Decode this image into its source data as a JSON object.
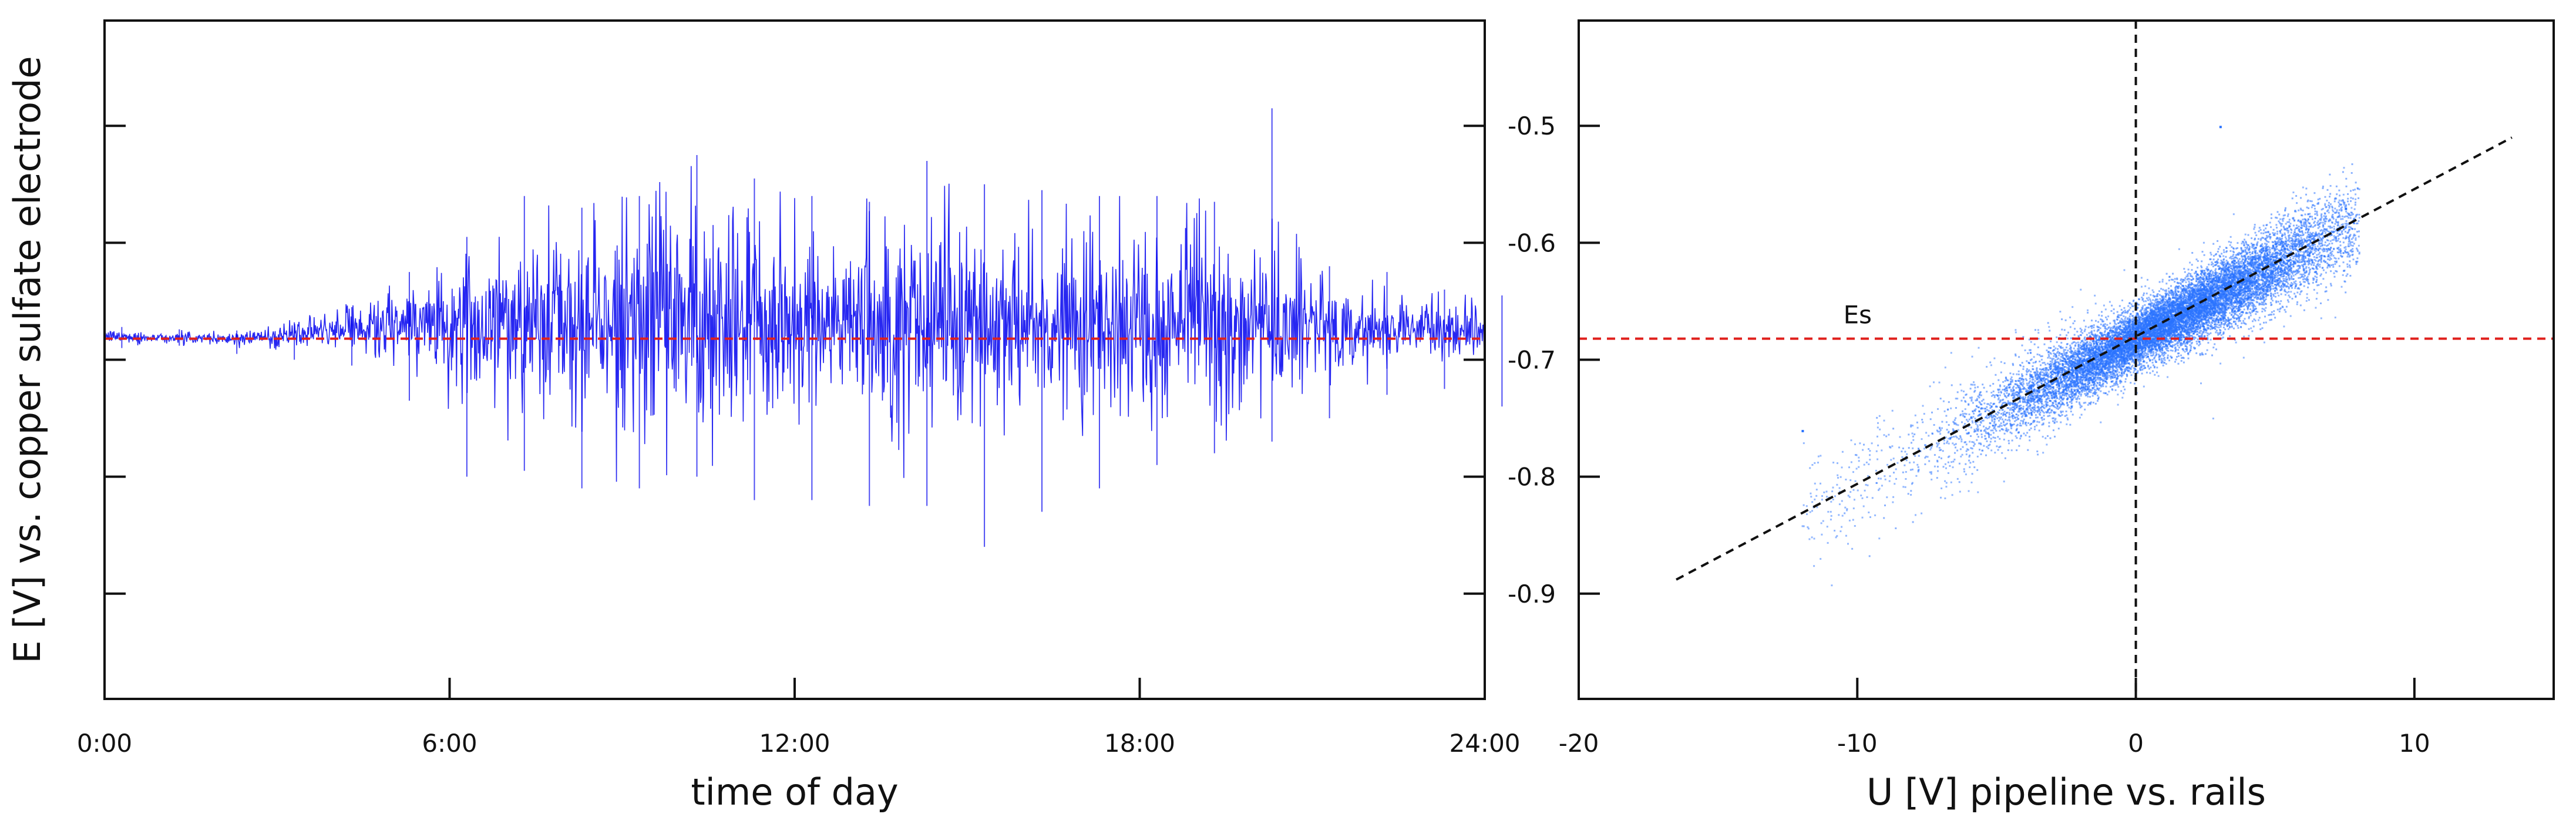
{
  "chart_data": [
    {
      "type": "line",
      "title": "",
      "xlabel": "time of day",
      "ylabel": "E [V] vs. copper sulfate electrode",
      "x_unit": "hours",
      "xlim": [
        0,
        24
      ],
      "ylim": [
        -0.99,
        -0.41
      ],
      "x_ticks": [
        0,
        6,
        12,
        18,
        24
      ],
      "x_tick_labels": [
        "0:00",
        "6:00",
        "12:00",
        "18:00",
        "24:00"
      ],
      "y_ticks": [
        -0.5,
        -0.6,
        -0.7,
        -0.8,
        -0.9
      ],
      "y_tick_labels": [
        "-0.5",
        "-0.6",
        "-0.7",
        "-0.8",
        "-0.9"
      ],
      "grid": false,
      "legend": "none",
      "reference_line": {
        "y": -0.682,
        "color": "#e0201c",
        "style": "dashed"
      },
      "series": [
        {
          "color": "#0000ee",
          "note_x_hours": [
            0,
            1,
            2,
            3,
            4,
            5,
            6,
            7,
            8,
            9,
            10,
            11,
            12,
            13,
            14,
            15,
            16,
            17,
            18,
            19,
            20,
            21,
            22,
            23,
            24
          ],
          "x": [
            0,
            1,
            2,
            3,
            4,
            5,
            6,
            7,
            8,
            9,
            10,
            11,
            12,
            13,
            14,
            15,
            16,
            17,
            18,
            19,
            20,
            21,
            22,
            23,
            24
          ],
          "y_mean": [
            -0.68,
            -0.681,
            -0.682,
            -0.68,
            -0.675,
            -0.672,
            -0.67,
            -0.668,
            -0.668,
            -0.668,
            -0.666,
            -0.666,
            -0.667,
            -0.667,
            -0.665,
            -0.665,
            -0.666,
            -0.667,
            -0.668,
            -0.668,
            -0.67,
            -0.672,
            -0.673,
            -0.674,
            -0.676
          ],
          "y_max": [
            -0.672,
            -0.674,
            -0.675,
            -0.668,
            -0.655,
            -0.625,
            -0.595,
            -0.56,
            -0.57,
            -0.56,
            -0.525,
            -0.545,
            -0.56,
            -0.565,
            -0.53,
            -0.55,
            -0.555,
            -0.56,
            -0.56,
            -0.565,
            -0.485,
            -0.62,
            -0.625,
            -0.64,
            -0.645
          ],
          "y_min": [
            -0.69,
            -0.688,
            -0.695,
            -0.7,
            -0.705,
            -0.735,
            -0.8,
            -0.795,
            -0.81,
            -0.81,
            -0.8,
            -0.82,
            -0.82,
            -0.825,
            -0.825,
            -0.86,
            -0.83,
            -0.81,
            -0.79,
            -0.78,
            -0.77,
            -0.75,
            -0.73,
            -0.725,
            -0.74
          ]
        }
      ]
    },
    {
      "type": "scatter",
      "title": "",
      "xlabel": "U [V] pipeline vs. rails",
      "ylabel": "",
      "xlim": [
        -20,
        15
      ],
      "ylim": [
        -0.99,
        -0.41
      ],
      "x_ticks": [
        -20,
        -10,
        0,
        10
      ],
      "x_tick_labels": [
        "-20",
        "-10",
        "0",
        "10"
      ],
      "y_ticks": [
        -0.5,
        -0.6,
        -0.7,
        -0.8,
        -0.9
      ],
      "y_tick_labels": [
        "-0.5",
        "-0.6",
        "-0.7",
        "-0.8",
        "-0.9"
      ],
      "grid": false,
      "legend": "none",
      "reference_line": {
        "y": -0.682,
        "color": "#e0201c",
        "style": "dashed",
        "label": "Es"
      },
      "vertical_line": {
        "x": 0,
        "color": "#111111",
        "style": "dashed"
      },
      "fit_line": {
        "x": [
          -16.5,
          13.5
        ],
        "y": [
          -0.888,
          -0.51
        ],
        "color": "#111111",
        "style": "dashed"
      },
      "cloud": {
        "color": "#2a73ff",
        "x_range": [
          -12,
          8
        ],
        "slope": 0.0126,
        "intercept": -0.681,
        "extremes": [
          {
            "x": 3,
            "y": -0.5
          },
          {
            "x": -12,
            "y": -0.76
          },
          {
            "x": 7.5,
            "y": -0.57
          }
        ]
      }
    }
  ]
}
